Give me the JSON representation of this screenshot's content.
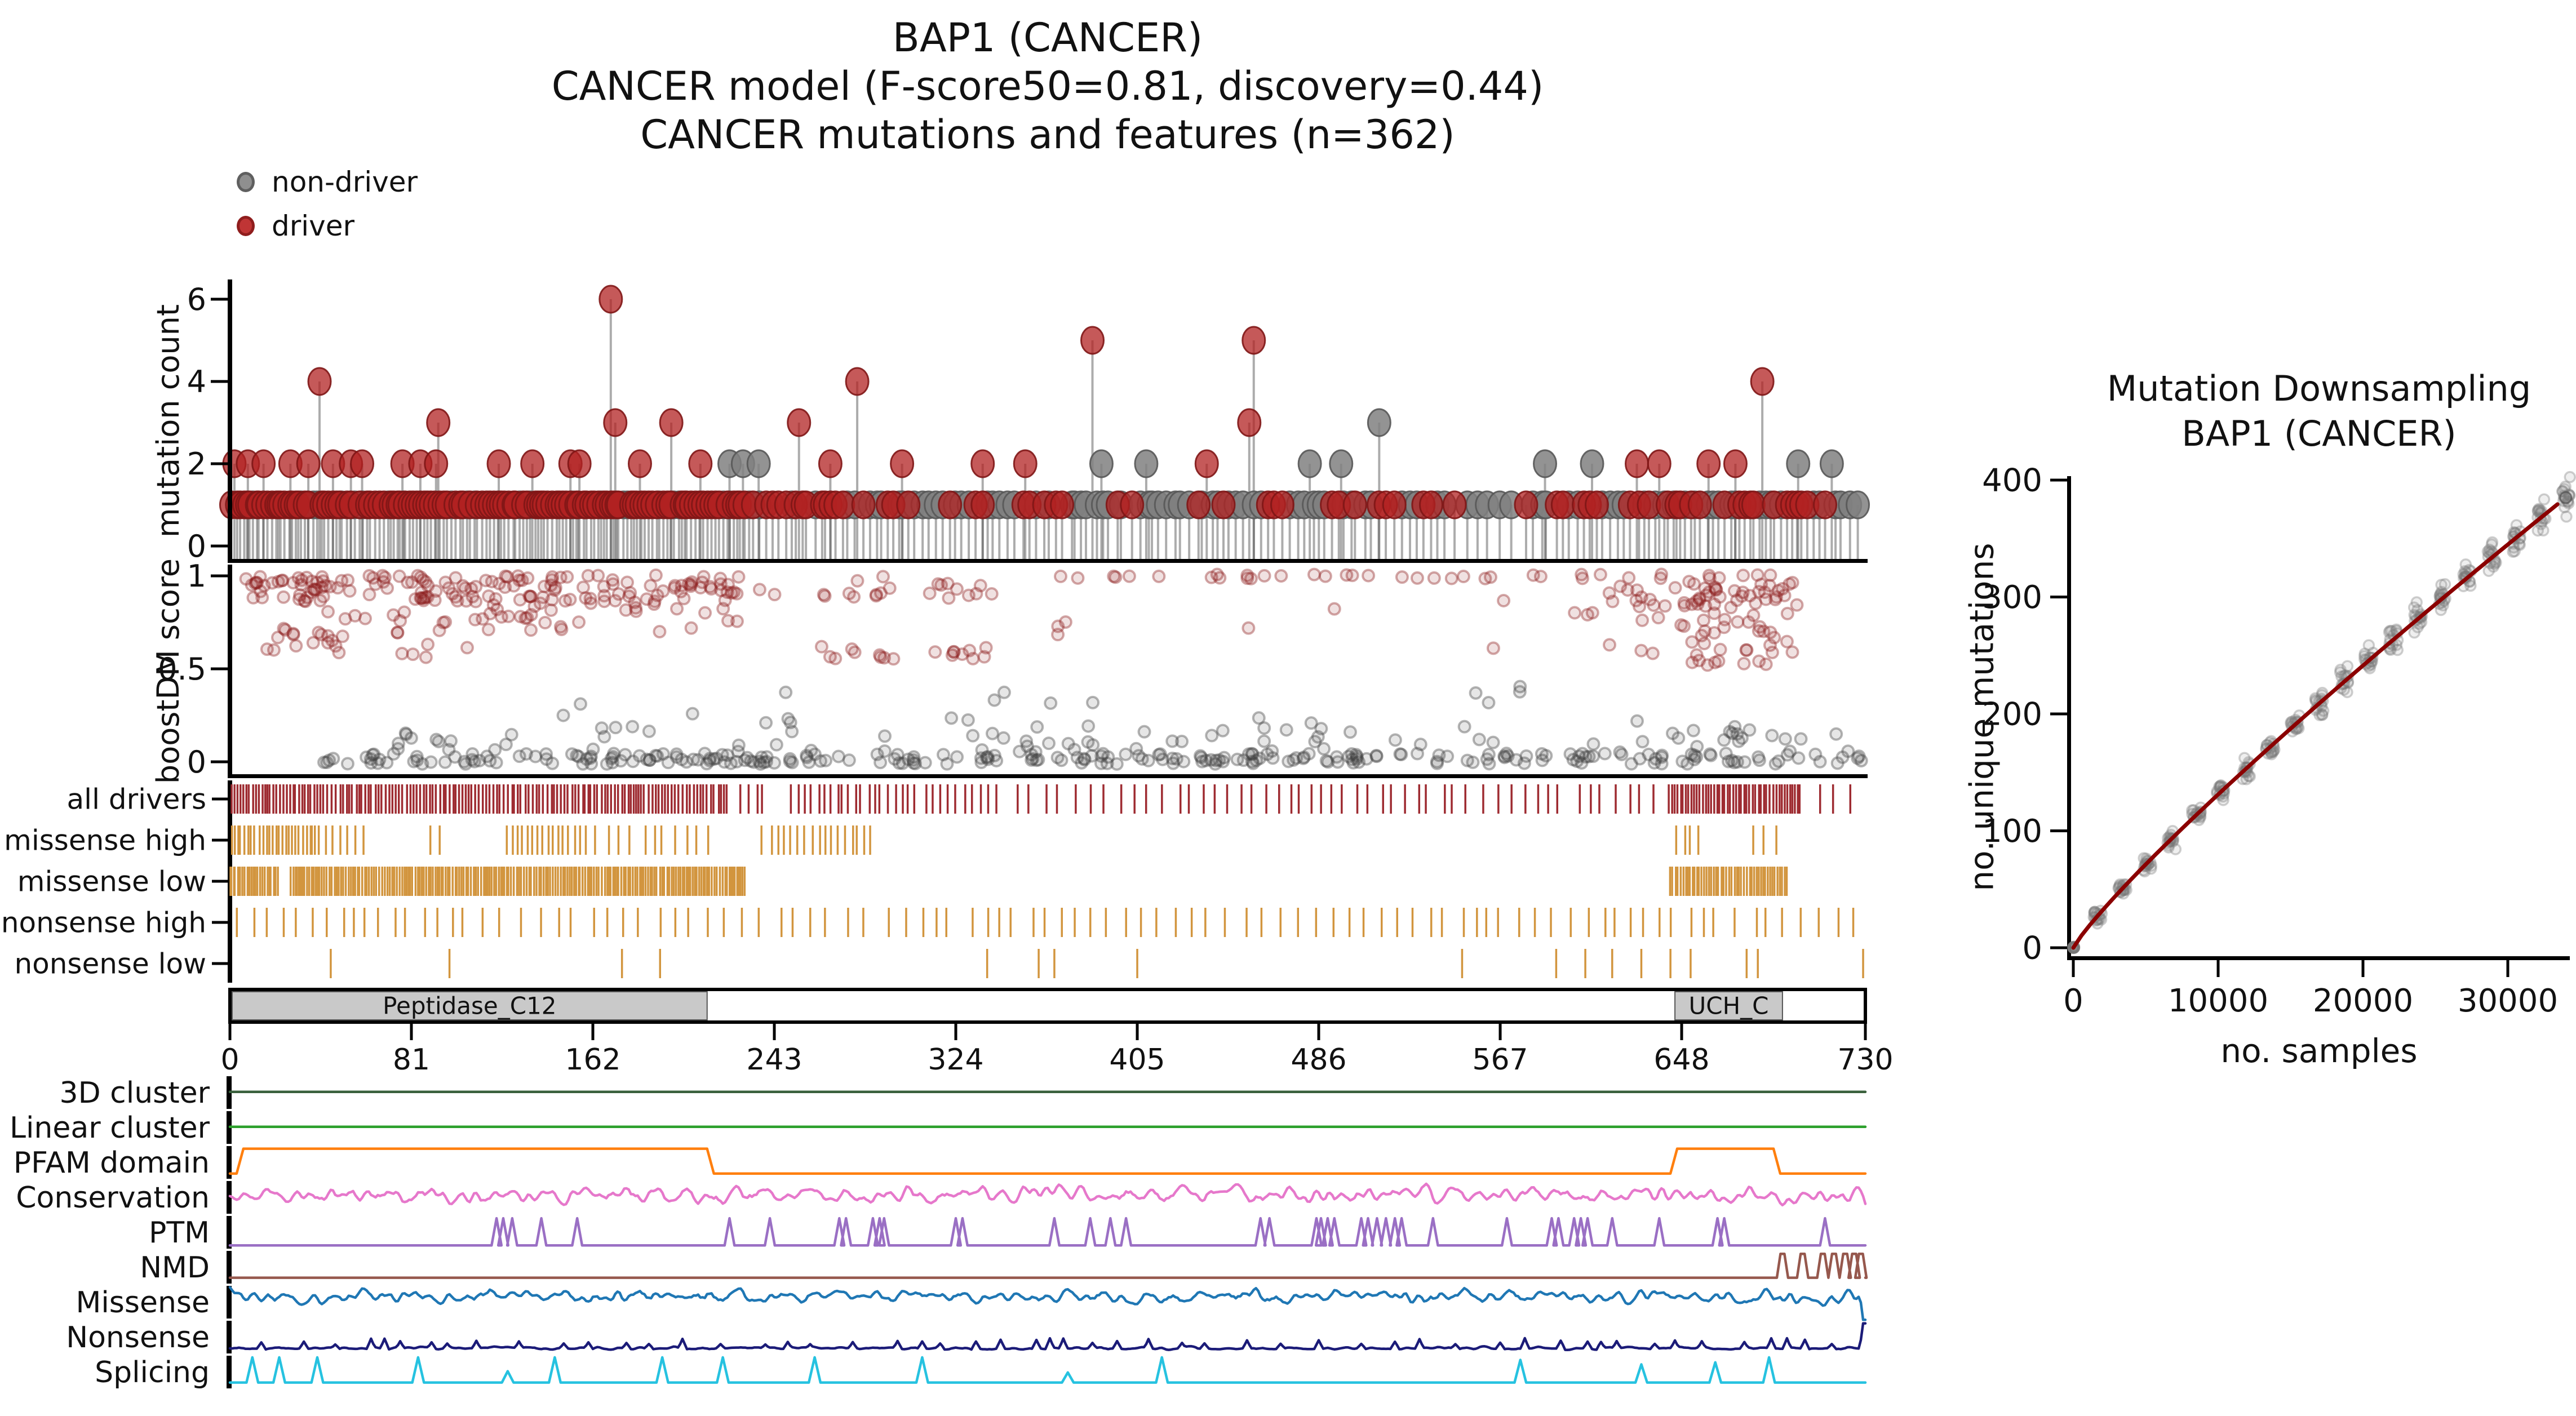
{
  "meta": {
    "background": "#ffffff"
  },
  "main_title": {
    "lines": [
      "BAP1 (CANCER)",
      "CANCER model (F-score50=0.81, discovery=0.44)",
      "CANCER mutations and features (n=362)"
    ]
  },
  "legend": {
    "items": [
      {
        "label": "non-driver",
        "fill": "#8f8f8f",
        "edge": "#5f5f5f"
      },
      {
        "label": "driver",
        "fill": "#c03535",
        "edge": "#8f1d1d"
      }
    ]
  },
  "chart_data": [
    {
      "id": "needle",
      "type": "lollipop",
      "ylabel": "mutation count",
      "yticks": [
        0,
        2,
        4,
        6
      ],
      "xlim": [
        0,
        730
      ],
      "ylim": [
        0,
        6.5
      ],
      "colors": {
        "driver": "rgba(178,34,34,0.75)",
        "driver_edge": "rgba(127,22,22,0.9)",
        "nondriver": "rgba(128,128,128,0.85)",
        "nondriver_edge": "rgba(88,88,88,0.9)",
        "stem": "rgba(70,70,70,0.45)"
      },
      "featured": [
        [
          2,
          2,
          1
        ],
        [
          8,
          2,
          1
        ],
        [
          15,
          2,
          1
        ],
        [
          27,
          2,
          1
        ],
        [
          35,
          2,
          1
        ],
        [
          40,
          4,
          1
        ],
        [
          46,
          2,
          1
        ],
        [
          54,
          2,
          1
        ],
        [
          59,
          2,
          1
        ],
        [
          77,
          2,
          1
        ],
        [
          85,
          2,
          1
        ],
        [
          92,
          2,
          1
        ],
        [
          93,
          3,
          1
        ],
        [
          120,
          2,
          1
        ],
        [
          135,
          2,
          1
        ],
        [
          152,
          2,
          1
        ],
        [
          156,
          2,
          1
        ],
        [
          170,
          6,
          1
        ],
        [
          172,
          3,
          1
        ],
        [
          183,
          2,
          1
        ],
        [
          197,
          3,
          1
        ],
        [
          210,
          2,
          1
        ],
        [
          223,
          2,
          0
        ],
        [
          229,
          2,
          0
        ],
        [
          236,
          2,
          0
        ],
        [
          254,
          3,
          1
        ],
        [
          268,
          2,
          1
        ],
        [
          280,
          4,
          1
        ],
        [
          300,
          2,
          1
        ],
        [
          336,
          2,
          1
        ],
        [
          355,
          2,
          1
        ],
        [
          385,
          5,
          1
        ],
        [
          389,
          2,
          0
        ],
        [
          409,
          2,
          0
        ],
        [
          436,
          2,
          1
        ],
        [
          455,
          3,
          1
        ],
        [
          457,
          5,
          1
        ],
        [
          482,
          2,
          0
        ],
        [
          496,
          2,
          0
        ],
        [
          513,
          3,
          0
        ],
        [
          587,
          2,
          0
        ],
        [
          608,
          2,
          0
        ],
        [
          628,
          2,
          1
        ],
        [
          638,
          2,
          1
        ],
        [
          660,
          2,
          1
        ],
        [
          672,
          2,
          1
        ],
        [
          684,
          4,
          1
        ],
        [
          700,
          2,
          0
        ],
        [
          715,
          2,
          0
        ]
      ],
      "base_regions": [
        [
          1,
          230,
          1.6,
          0.85
        ],
        [
          232,
          345,
          2.6,
          0.55
        ],
        [
          347,
          540,
          3.2,
          0.35
        ],
        [
          542,
          576,
          5.5,
          0.1
        ],
        [
          578,
          640,
          3.0,
          0.35
        ],
        [
          642,
          702,
          2.2,
          0.55
        ],
        [
          704,
          729,
          3.4,
          0.4
        ]
      ],
      "seed": 7
    },
    {
      "id": "boostdm",
      "type": "scatter",
      "ylabel": "boostDM score",
      "yticks": [
        0,
        0.5,
        1
      ],
      "xlim": [
        0,
        730
      ],
      "colors": {
        "driver": "139,26,26",
        "nondriver": "60,60,60"
      },
      "clusters": [
        {
          "cls": "driver",
          "x0": 3,
          "x1": 228,
          "y0": 0.96,
          "y1": 1.005,
          "n": 55
        },
        {
          "cls": "driver",
          "x0": 8,
          "x1": 228,
          "y0": 0.86,
          "y1": 0.96,
          "n": 100
        },
        {
          "cls": "driver",
          "x0": 20,
          "x1": 230,
          "y0": 0.7,
          "y1": 0.86,
          "n": 45
        },
        {
          "cls": "driver",
          "x0": 12,
          "x1": 110,
          "y0": 0.55,
          "y1": 0.7,
          "n": 22
        },
        {
          "cls": "driver",
          "x0": 235,
          "x1": 345,
          "y0": 0.88,
          "y1": 1.0,
          "n": 22
        },
        {
          "cls": "driver",
          "x0": 262,
          "x1": 340,
          "y0": 0.55,
          "y1": 0.62,
          "n": 18
        },
        {
          "cls": "driver",
          "x0": 350,
          "x1": 730,
          "y0": 0.985,
          "y1": 1.008,
          "n": 40
        },
        {
          "cls": "driver",
          "x0": 366,
          "x1": 374,
          "y0": 0.6,
          "y1": 0.78,
          "n": 3
        },
        {
          "cls": "driver",
          "x0": 440,
          "x1": 640,
          "y0": 0.6,
          "y1": 0.95,
          "n": 8
        },
        {
          "cls": "driver",
          "x0": 615,
          "x1": 700,
          "y0": 0.82,
          "y1": 0.97,
          "n": 50
        },
        {
          "cls": "driver",
          "x0": 628,
          "x1": 700,
          "y0": 0.52,
          "y1": 0.8,
          "n": 40
        },
        {
          "cls": "nondriver",
          "x0": 40,
          "x1": 730,
          "y0": -0.012,
          "y1": 0.045,
          "n": 260
        },
        {
          "cls": "nondriver",
          "x0": 55,
          "x1": 730,
          "y0": 0.05,
          "y1": 0.17,
          "n": 70
        },
        {
          "cls": "nondriver",
          "x0": 120,
          "x1": 700,
          "y0": 0.17,
          "y1": 0.38,
          "n": 30
        },
        {
          "cls": "nondriver",
          "x0": 560,
          "x1": 580,
          "y0": 0.4,
          "y1": 0.44,
          "n": 1
        }
      ],
      "seed": 13
    },
    {
      "id": "mutation_ticks",
      "type": "rug_tracks",
      "seed": 29,
      "rows": [
        {
          "label": "all drivers",
          "color": "#9e2b31",
          "regions": [
            [
              1,
              222,
              1.5
            ],
            [
              228,
              240,
              3
            ],
            [
              250,
              345,
              3.2
            ],
            [
              352,
              640,
              5.8
            ],
            [
              642,
              700,
              1.25
            ],
            [
              702,
              730,
              8
            ]
          ]
        },
        {
          "label": "missense high",
          "color": "#d2953e",
          "regions": [
            [
              1,
              40,
              1.5
            ],
            [
              42,
              60,
              3.5
            ],
            [
              90,
              94,
              3
            ],
            [
              124,
              160,
              2.2
            ],
            [
              163,
              215,
              5
            ],
            [
              238,
              286,
              3
            ],
            [
              645,
              658,
              3.5
            ],
            [
              680,
              695,
              6
            ]
          ]
        },
        {
          "label": "missense low",
          "color": "#d2953e",
          "regions": [
            [
              0,
              22,
              1.0
            ],
            [
              27,
              230,
              1.0
            ],
            [
              643,
              696,
              1.1
            ]
          ]
        },
        {
          "label": "nonsense high",
          "color": "#d2953e",
          "regions": [
            [
              2,
              728,
              7.2
            ]
          ]
        },
        {
          "label": "nonsense low",
          "color": "#d2953e",
          "positions": [
            45,
            98,
            175,
            192,
            338,
            361,
            368,
            405,
            550,
            592,
            605,
            617,
            630,
            643,
            652,
            677,
            682,
            729
          ]
        }
      ]
    },
    {
      "id": "domains",
      "type": "domain_axis",
      "xticks": [
        0,
        81,
        162,
        243,
        324,
        405,
        486,
        567,
        648,
        730
      ],
      "domains": [
        {
          "name": "Peptidase_C12",
          "from": 1,
          "to": 213
        },
        {
          "name": "UCH_C",
          "from": 645,
          "to": 693
        }
      ],
      "bar_fill": "#ffffff",
      "domain_fill": "#c9c9c9",
      "domain_edge": "#555555"
    },
    {
      "id": "features",
      "type": "line_tracks",
      "tracks": [
        {
          "label": "3D cluster",
          "color": "#39603c",
          "kind": "flat",
          "level": 0.48
        },
        {
          "label": "Linear cluster",
          "color": "#2ca02c",
          "kind": "flat",
          "level": 0.48
        },
        {
          "label": "PFAM domain",
          "color": "#ff7f0e",
          "kind": "step",
          "low": 0.84,
          "high": 0.08,
          "segments": [
            [
              3,
              213
            ],
            [
              643,
              689
            ]
          ]
        },
        {
          "label": "Conservation",
          "color": "#e678cb",
          "kind": "noise",
          "center": 0.45,
          "amp": 0.2,
          "seed": 11
        },
        {
          "label": "PTM",
          "color": "#9a6fc4",
          "kind": "spikes",
          "base": 0.9,
          "top": 0.07,
          "halfwidth": 2.2,
          "spikes": [
            [
              119,
              1
            ],
            [
              122,
              1
            ],
            [
              126,
              1
            ],
            [
              139,
              1
            ],
            [
              155,
              1
            ],
            [
              223,
              1
            ],
            [
              241,
              1
            ],
            [
              272,
              1
            ],
            [
              275,
              1
            ],
            [
              287,
              1
            ],
            [
              290,
              1
            ],
            [
              292,
              1
            ],
            [
              324,
              1
            ],
            [
              327,
              1
            ],
            [
              368,
              1
            ],
            [
              384,
              1
            ],
            [
              393,
              1
            ],
            [
              400,
              1
            ],
            [
              460,
              1
            ],
            [
              464,
              1
            ],
            [
              485,
              1
            ],
            [
              487,
              1
            ],
            [
              490,
              1
            ],
            [
              493,
              1
            ],
            [
              505,
              1
            ],
            [
              508,
              1
            ],
            [
              512,
              1
            ],
            [
              516,
              1
            ],
            [
              520,
              1
            ],
            [
              523,
              1
            ],
            [
              537,
              1
            ],
            [
              570,
              1
            ],
            [
              590,
              1
            ],
            [
              593,
              1
            ],
            [
              600,
              1
            ],
            [
              603,
              1
            ],
            [
              606,
              1
            ],
            [
              617,
              1
            ],
            [
              638,
              1
            ],
            [
              664,
              1
            ],
            [
              667,
              1
            ],
            [
              712,
              1
            ]
          ]
        },
        {
          "label": "NMD",
          "color": "#96584d",
          "kind": "plateaus",
          "base": 0.82,
          "top": 0.09,
          "halfwidth": 2.5,
          "spikes": [
            693,
            702,
            711,
            716,
            721,
            725,
            728
          ]
        },
        {
          "label": "Missense",
          "color": "#1f77b4",
          "kind": "noise",
          "center": 0.33,
          "amp": 0.16,
          "seed": 23,
          "end": {
            "at": 727,
            "level": 1.04
          }
        },
        {
          "label": "Nonsense",
          "color": "#1b1b78",
          "kind": "spiky",
          "center": 0.84,
          "amp": 0.05,
          "spike_h": 0.22,
          "seed": 37,
          "end": {
            "at": 727,
            "level": 0.08
          }
        },
        {
          "label": "Splicing",
          "color": "#26c2e0",
          "kind": "spikes",
          "base": 0.82,
          "top": 0.05,
          "halfwidth": 2.6,
          "spikes": [
            [
              10,
              1
            ],
            [
              22,
              1
            ],
            [
              39,
              1
            ],
            [
              84,
              1
            ],
            [
              124,
              0.45
            ],
            [
              145,
              1
            ],
            [
              193,
              1
            ],
            [
              220,
              1
            ],
            [
              261,
              1
            ],
            [
              309,
              1
            ],
            [
              374,
              0.4
            ],
            [
              416,
              1
            ],
            [
              576,
              0.9
            ],
            [
              630,
              0.72
            ],
            [
              663,
              0.8
            ],
            [
              687,
              1
            ]
          ]
        }
      ]
    },
    {
      "id": "downsampling",
      "type": "scatter_line",
      "title": [
        "Mutation Downsampling",
        "BAP1 (CANCER)"
      ],
      "xlabel": "no. samples",
      "ylabel": "no. unique mutations",
      "xticks": [
        0,
        10000,
        20000,
        30000
      ],
      "yticks": [
        0,
        100,
        200,
        300,
        400
      ],
      "curve": {
        "color": "#8b0000",
        "x_max": 34000,
        "y_max": 385,
        "exponent": 0.88
      },
      "clusters": {
        "step": 1700,
        "count": 21,
        "points": 16,
        "sd_base": 5,
        "sd_slope": 10,
        "x_jitter": 600,
        "color": "120,120,120"
      },
      "seed": 51
    }
  ]
}
